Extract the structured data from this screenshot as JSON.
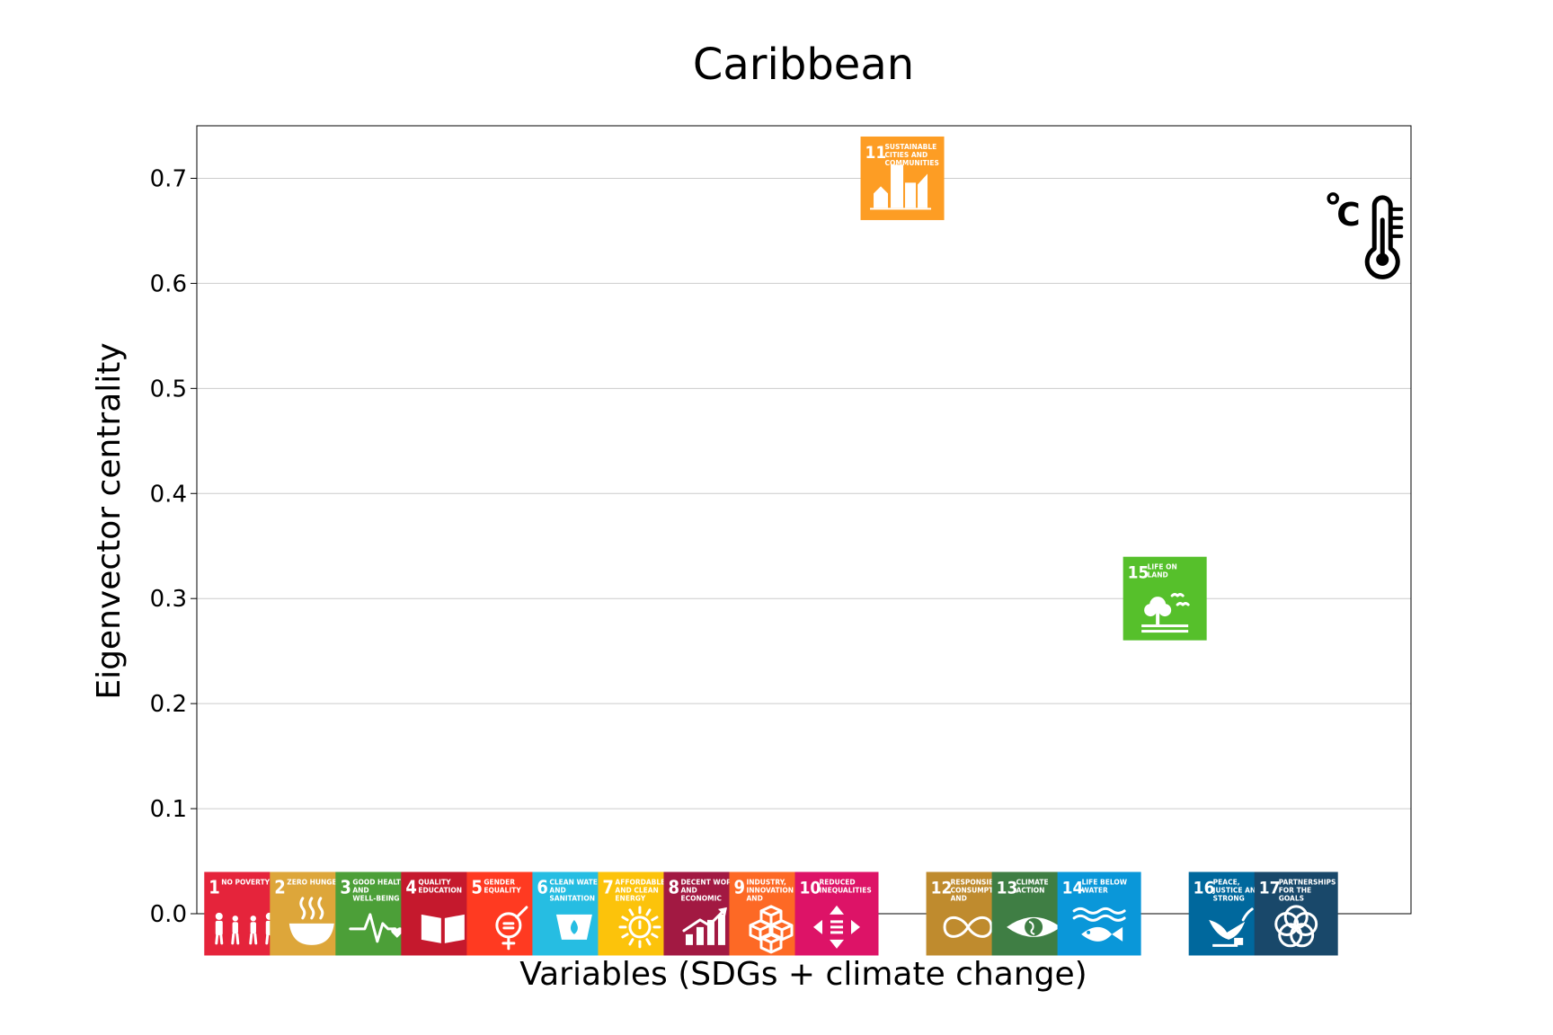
{
  "chart_data": {
    "type": "scatter",
    "title": "Caribbean",
    "xlabel": "Variables (SDGs + climate change)",
    "ylabel": "Eigenvector centrality",
    "ylim": [
      0,
      0.75
    ],
    "yticks": [
      "0.0",
      "0.1",
      "0.2",
      "0.3",
      "0.4",
      "0.5",
      "0.6",
      "0.7"
    ],
    "grid": "horizontal",
    "points": [
      {
        "x": 1,
        "y": 0.0,
        "num": "1",
        "label": "NO POVERTY",
        "color": "#e5243b",
        "icon": "family-icon"
      },
      {
        "x": 2,
        "y": 0.0,
        "num": "2",
        "label": "ZERO HUNGER",
        "color": "#dda63a",
        "icon": "bowl-icon"
      },
      {
        "x": 3,
        "y": 0.0,
        "num": "3",
        "label": "GOOD HEALTH AND WELL-BEING",
        "color": "#4c9f38",
        "icon": "heartbeat-icon"
      },
      {
        "x": 4,
        "y": 0.0,
        "num": "4",
        "label": "QUALITY EDUCATION",
        "color": "#c5192d",
        "icon": "book-icon"
      },
      {
        "x": 5,
        "y": 0.0,
        "num": "5",
        "label": "GENDER EQUALITY",
        "color": "#ff3a21",
        "icon": "gender-icon"
      },
      {
        "x": 6,
        "y": 0.0,
        "num": "6",
        "label": "CLEAN WATER AND SANITATION",
        "color": "#26bde2",
        "icon": "water-drop-icon"
      },
      {
        "x": 7,
        "y": 0.0,
        "num": "7",
        "label": "AFFORDABLE AND CLEAN ENERGY",
        "color": "#fcc30b",
        "icon": "sun-power-icon"
      },
      {
        "x": 8,
        "y": 0.0,
        "num": "8",
        "label": "DECENT WORK AND ECONOMIC GROWTH",
        "color": "#a21942",
        "icon": "growth-chart-icon"
      },
      {
        "x": 9,
        "y": 0.0,
        "num": "9",
        "label": "INDUSTRY, INNOVATION AND INFRASTRUCTURE",
        "color": "#fd6925",
        "icon": "cubes-icon"
      },
      {
        "x": 10,
        "y": 0.0,
        "num": "10",
        "label": "REDUCED INEQUALITIES",
        "color": "#dd1367",
        "icon": "equality-arrows-icon"
      },
      {
        "x": 11,
        "y": 0.7,
        "num": "11",
        "label": "SUSTAINABLE CITIES AND COMMUNITIES",
        "color": "#fd9d24",
        "icon": "city-icon"
      },
      {
        "x": 12,
        "y": 0.0,
        "num": "12",
        "label": "RESPONSIBLE CONSUMPTION AND PRODUCTION",
        "color": "#bf8b2e",
        "icon": "infinity-icon"
      },
      {
        "x": 13,
        "y": 0.0,
        "num": "13",
        "label": "CLIMATE ACTION",
        "color": "#3f7e44",
        "icon": "eye-globe-icon"
      },
      {
        "x": 14,
        "y": 0.0,
        "num": "14",
        "label": "LIFE BELOW WATER",
        "color": "#0a97d9",
        "icon": "fish-icon"
      },
      {
        "x": 15,
        "y": 0.3,
        "num": "15",
        "label": "LIFE ON LAND",
        "color": "#56c02b",
        "icon": "tree-birds-icon"
      },
      {
        "x": 16,
        "y": 0.0,
        "num": "16",
        "label": "PEACE, JUSTICE AND STRONG INSTITUTIONS",
        "color": "#00689d",
        "icon": "dove-gavel-icon"
      },
      {
        "x": 17,
        "y": 0.0,
        "num": "17",
        "label": "PARTNERSHIPS FOR THE GOALS",
        "color": "#19486a",
        "icon": "flower-rings-icon"
      },
      {
        "x": 18,
        "y": 0.65,
        "num": "",
        "label": "",
        "color": "#000000",
        "icon": "thermometer-celsius-icon"
      }
    ]
  }
}
